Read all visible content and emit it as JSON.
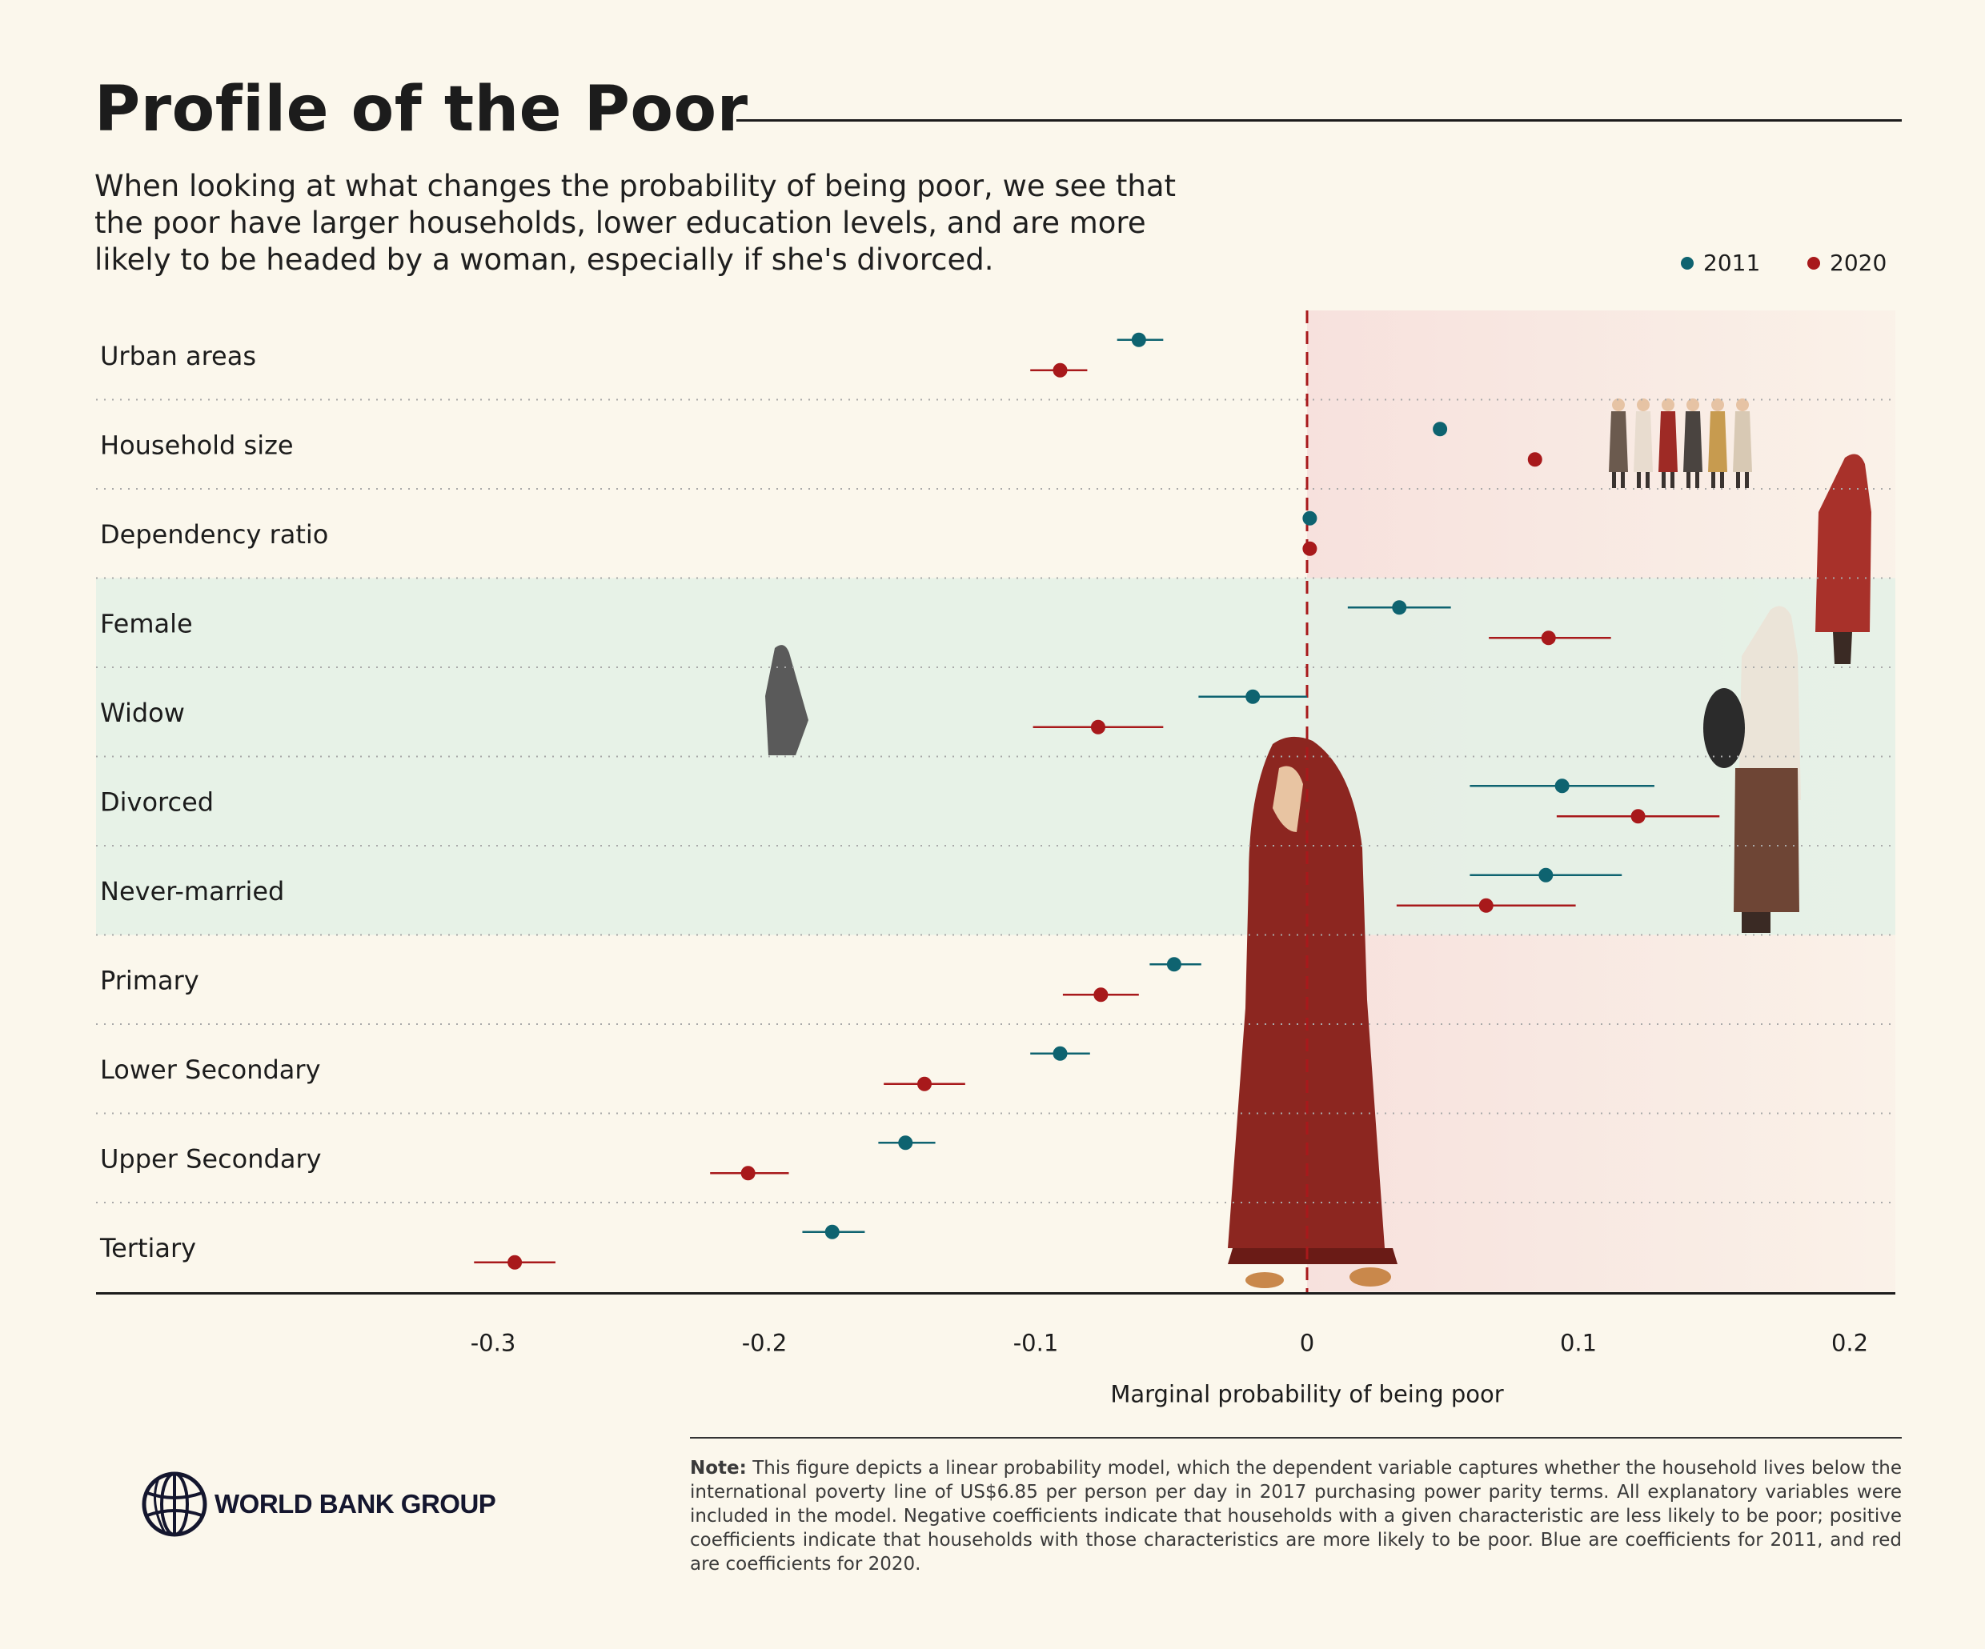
{
  "header": {
    "title": "Profile of the Poor",
    "subtitle": "When looking at what changes the probability of being poor, we see that the poor have larger households, lower education levels, and are more likely to be headed by a woman, especially if she's divorced."
  },
  "colors": {
    "s2011": "#0e6370",
    "s2020": "#a8191b",
    "background": "#fbf7ec",
    "highlight_band": "#e3f1e6",
    "positive_region": "#f7e1dd"
  },
  "chart_data": {
    "type": "scatter",
    "subtype": "coefficient-plot-with-error-bars",
    "xlabel": "Marginal probability of being poor",
    "xlim": [
      -0.3,
      0.2
    ],
    "xticks": [
      -0.3,
      -0.2,
      -0.1,
      0,
      0.1,
      0.2
    ],
    "xtick_labels": [
      "-0.3",
      "-0.2",
      "-0.1",
      "0",
      "0.1",
      "0.2"
    ],
    "reference_line": 0,
    "legend_placement": "top-right",
    "categories": [
      "Urban areas",
      "Household size",
      "Dependency ratio",
      "Female",
      "Widow",
      "Divorced",
      "Never-married",
      "Primary",
      "Lower Secondary",
      "Upper Secondary",
      "Tertiary"
    ],
    "highlighted_categories": [
      "Female",
      "Widow",
      "Divorced",
      "Never-married"
    ],
    "series": [
      {
        "name": "2011",
        "values": [
          -0.062,
          0.049,
          0.001,
          0.034,
          -0.02,
          0.094,
          0.088,
          -0.049,
          -0.091,
          -0.148,
          -0.175
        ],
        "ci_low": [
          -0.07,
          0.049,
          0.001,
          0.015,
          -0.04,
          0.06,
          0.06,
          -0.058,
          -0.102,
          -0.158,
          -0.186
        ],
        "ci_high": [
          -0.053,
          0.049,
          0.001,
          0.053,
          0.0,
          0.128,
          0.116,
          -0.039,
          -0.08,
          -0.137,
          -0.163
        ]
      },
      {
        "name": "2020",
        "values": [
          -0.091,
          0.084,
          0.001,
          0.089,
          -0.077,
          0.122,
          0.066,
          -0.076,
          -0.141,
          -0.206,
          -0.292
        ],
        "ci_low": [
          -0.102,
          0.084,
          0.001,
          0.067,
          -0.101,
          0.092,
          0.033,
          -0.09,
          -0.156,
          -0.22,
          -0.307
        ],
        "ci_high": [
          -0.081,
          0.084,
          0.001,
          0.112,
          -0.053,
          0.152,
          0.099,
          -0.062,
          -0.126,
          -0.191,
          -0.277
        ]
      }
    ]
  },
  "note": {
    "label": "Note:",
    "text": " This figure depicts a linear probability model, which the dependent variable captures whether the household lives below the international poverty line of US$6.85 per person per day in 2017 purchasing power parity terms. All explanatory variables were included in the model. Negative coefficients indicate that households with a given characteristic are less likely to be poor; positive coefficients indicate that households with those characteristics are more likely to be poor. Blue are coefficients for 2011, and red are coefficients for 2020."
  },
  "logo": {
    "text": "WORLD BANK GROUP",
    "icon": "globe-icon"
  },
  "illustrations": [
    "walking-family-icon",
    "hooded-woman-icon",
    "standing-woman-icon",
    "mourning-figure-icon",
    "large-hooded-woman-icon"
  ]
}
